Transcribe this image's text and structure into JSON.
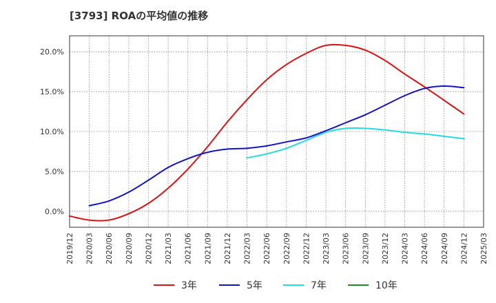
{
  "chart_data": {
    "type": "line",
    "title": "[3793]  ROAの平均値の推移",
    "x_ticks": [
      "2019/12",
      "2020/03",
      "2020/06",
      "2020/09",
      "2020/12",
      "2021/03",
      "2021/06",
      "2021/09",
      "2021/12",
      "2022/03",
      "2022/06",
      "2022/09",
      "2022/12",
      "2023/03",
      "2023/06",
      "2023/09",
      "2023/12",
      "2024/03",
      "2024/06",
      "2024/09",
      "2024/12",
      "2025/03"
    ],
    "y_ticks": [
      0,
      5,
      10,
      15,
      20
    ],
    "y_tick_labels": [
      "0.0%",
      "5.0%",
      "10.0%",
      "15.0%",
      "20.0%"
    ],
    "ylim": [
      -2.0,
      22.0
    ],
    "grid": true,
    "legend_position": "bottom",
    "series": [
      {
        "name": "3年",
        "color": "#dd1111",
        "points": [
          [
            "2019/12",
            -0.6
          ],
          [
            "2020/03",
            -1.1
          ],
          [
            "2020/06",
            -1.1
          ],
          [
            "2020/09",
            -0.3
          ],
          [
            "2020/12",
            1.0
          ],
          [
            "2021/03",
            2.9
          ],
          [
            "2021/06",
            5.3
          ],
          [
            "2021/09",
            8.1
          ],
          [
            "2021/12",
            11.2
          ],
          [
            "2022/03",
            14.0
          ],
          [
            "2022/06",
            16.5
          ],
          [
            "2022/09",
            18.4
          ],
          [
            "2022/12",
            19.8
          ],
          [
            "2023/03",
            20.8
          ],
          [
            "2023/06",
            20.8
          ],
          [
            "2023/09",
            20.2
          ],
          [
            "2023/12",
            18.9
          ],
          [
            "2024/03",
            17.2
          ],
          [
            "2024/06",
            15.6
          ],
          [
            "2024/09",
            13.9
          ],
          [
            "2024/12",
            12.2
          ]
        ]
      },
      {
        "name": "5年",
        "color": "#1111cc",
        "points": [
          [
            "2020/03",
            0.7
          ],
          [
            "2020/06",
            1.3
          ],
          [
            "2020/09",
            2.4
          ],
          [
            "2020/12",
            3.9
          ],
          [
            "2021/03",
            5.5
          ],
          [
            "2021/06",
            6.6
          ],
          [
            "2021/09",
            7.4
          ],
          [
            "2021/12",
            7.8
          ],
          [
            "2022/03",
            7.9
          ],
          [
            "2022/06",
            8.2
          ],
          [
            "2022/09",
            8.7
          ],
          [
            "2022/12",
            9.2
          ],
          [
            "2023/03",
            10.1
          ],
          [
            "2023/06",
            11.1
          ],
          [
            "2023/09",
            12.1
          ],
          [
            "2023/12",
            13.3
          ],
          [
            "2024/03",
            14.5
          ],
          [
            "2024/06",
            15.4
          ],
          [
            "2024/09",
            15.7
          ],
          [
            "2024/12",
            15.5
          ]
        ]
      },
      {
        "name": "7年",
        "color": "#22dddd",
        "points": [
          [
            "2022/03",
            6.7
          ],
          [
            "2022/06",
            7.2
          ],
          [
            "2022/09",
            7.9
          ],
          [
            "2022/12",
            8.9
          ],
          [
            "2023/03",
            9.9
          ],
          [
            "2023/06",
            10.4
          ],
          [
            "2023/09",
            10.4
          ],
          [
            "2023/12",
            10.2
          ],
          [
            "2024/03",
            9.9
          ],
          [
            "2024/06",
            9.7
          ],
          [
            "2024/09",
            9.4
          ],
          [
            "2024/12",
            9.1
          ]
        ]
      },
      {
        "name": "10年",
        "color": "#228822",
        "points": []
      }
    ]
  }
}
